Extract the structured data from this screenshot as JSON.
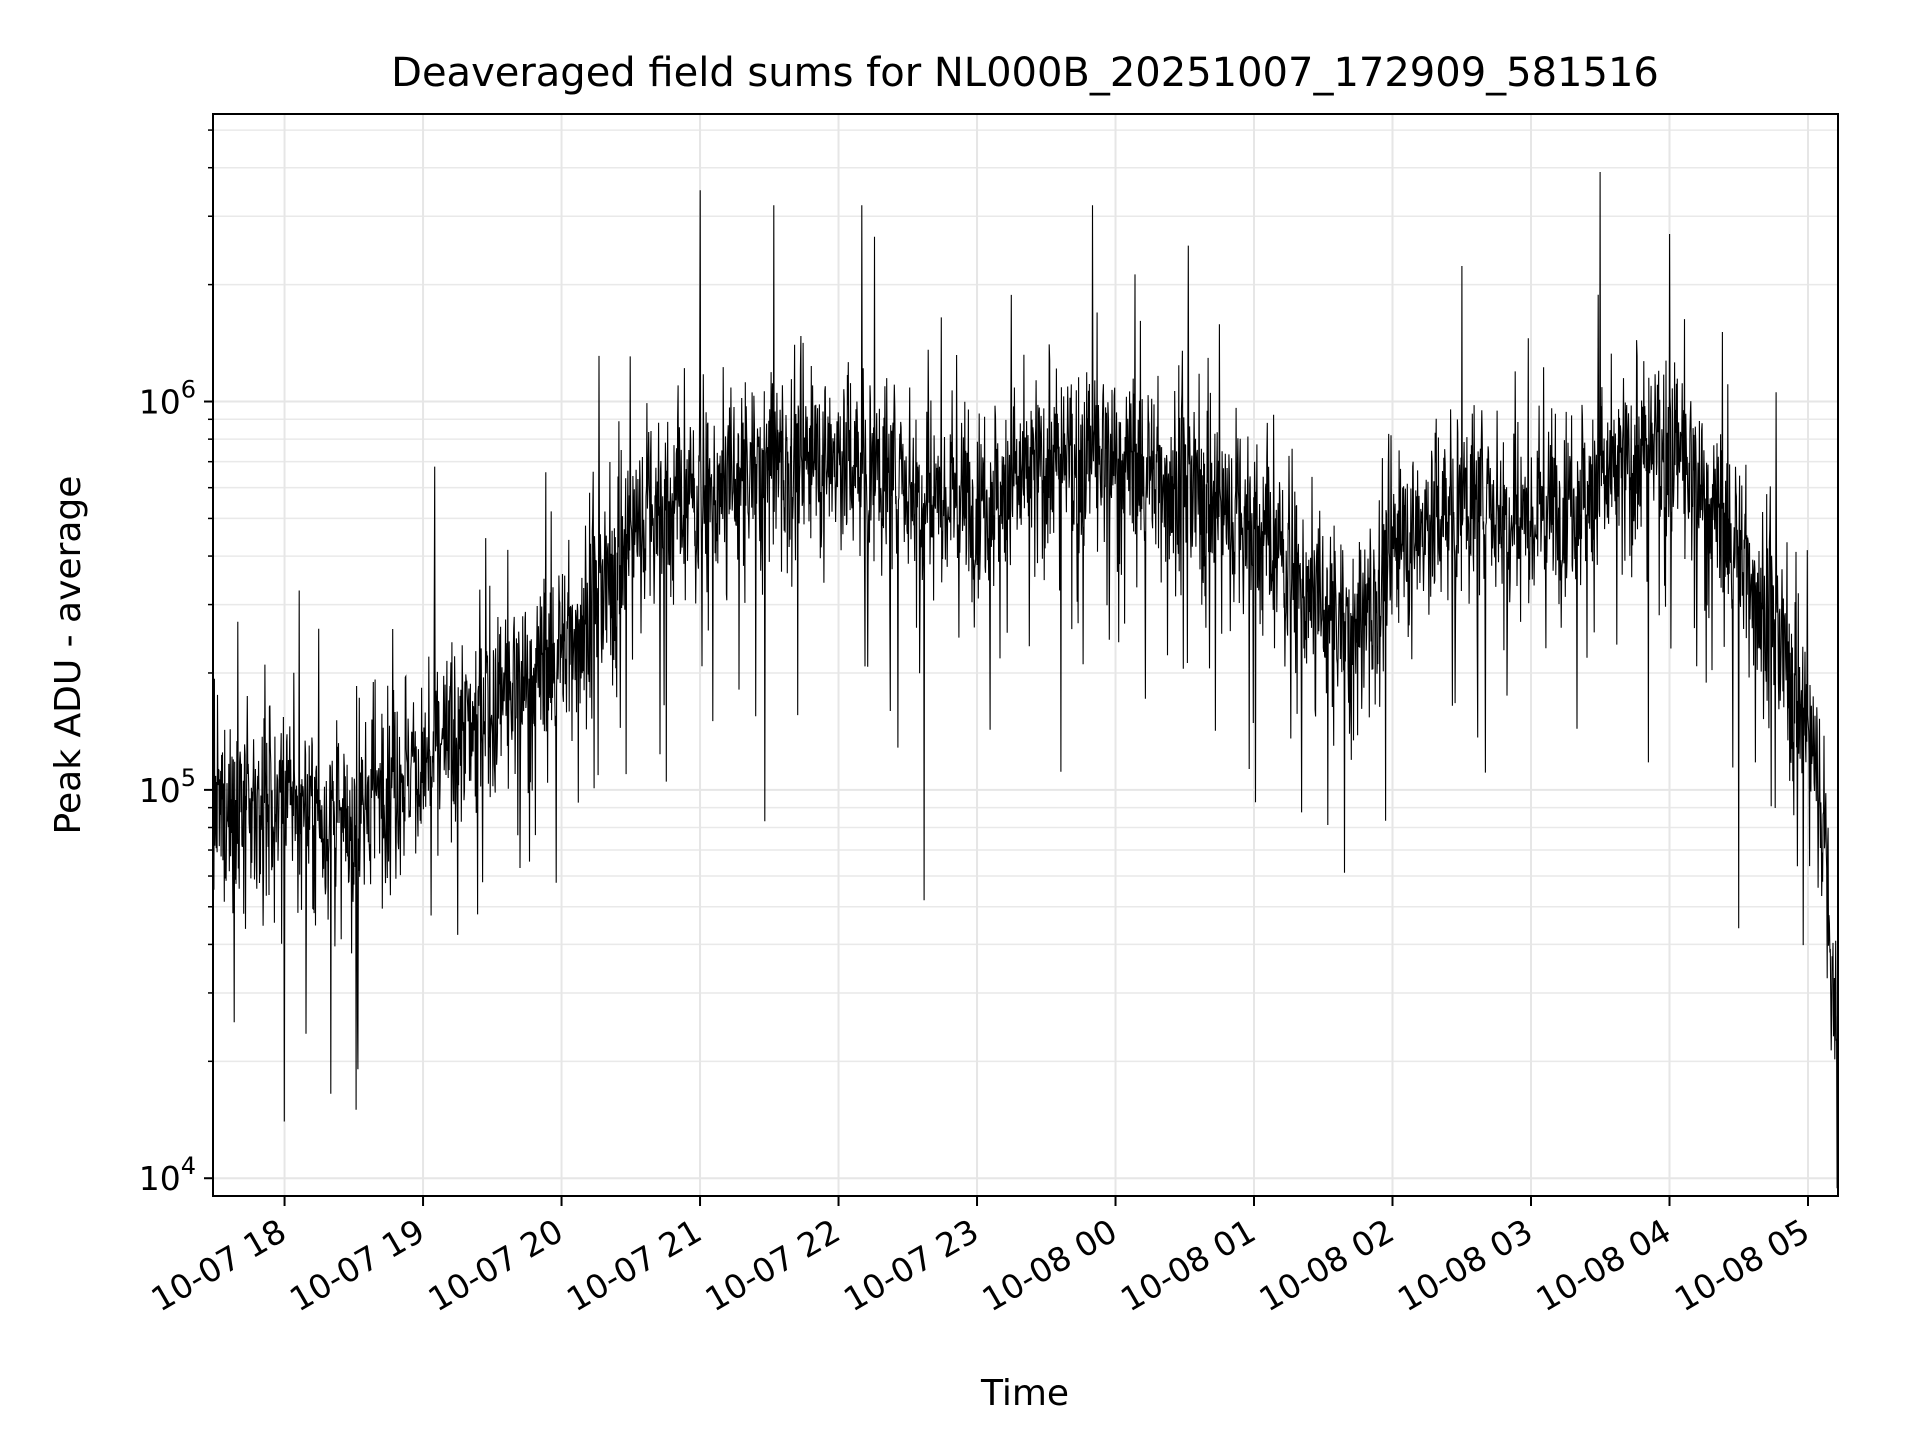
{
  "chart_data": {
    "type": "line",
    "title": "Deaveraged field sums for NL000B_20251007_172909_581516",
    "xlabel": "Time",
    "ylabel": "Peak ADU - average",
    "yscale": "log",
    "ylim": [
      9000,
      5500000
    ],
    "xlim": [
      "2025-10-07 17:29",
      "2025-10-08 05:13"
    ],
    "grid": true,
    "legend": "none",
    "line_color": "#000000",
    "x_ticks": [
      {
        "t": "2025-10-07 18:00",
        "label": "10-07 18"
      },
      {
        "t": "2025-10-07 19:00",
        "label": "10-07 19"
      },
      {
        "t": "2025-10-07 20:00",
        "label": "10-07 20"
      },
      {
        "t": "2025-10-07 21:00",
        "label": "10-07 21"
      },
      {
        "t": "2025-10-07 22:00",
        "label": "10-07 22"
      },
      {
        "t": "2025-10-07 23:00",
        "label": "10-07 23"
      },
      {
        "t": "2025-10-08 00:00",
        "label": "10-08 00"
      },
      {
        "t": "2025-10-08 01:00",
        "label": "10-08 01"
      },
      {
        "t": "2025-10-08 02:00",
        "label": "10-08 02"
      },
      {
        "t": "2025-10-08 03:00",
        "label": "10-08 03"
      },
      {
        "t": "2025-10-08 04:00",
        "label": "10-08 04"
      },
      {
        "t": "2025-10-08 05:00",
        "label": "10-08 05"
      }
    ],
    "y_ticks": [
      {
        "v": 10000,
        "base": "10",
        "exp": "4"
      },
      {
        "v": 100000,
        "base": "10",
        "exp": "5"
      },
      {
        "v": 1000000,
        "base": "10",
        "exp": "6"
      }
    ],
    "series": [
      {
        "style": "noisy",
        "envelope": [
          {
            "t": "2025-10-07 17:29",
            "y": 85000
          },
          {
            "t": "2025-10-07 18:00",
            "y": 90000
          },
          {
            "t": "2025-10-07 18:30",
            "y": 80000
          },
          {
            "t": "2025-10-07 18:45",
            "y": 110000
          },
          {
            "t": "2025-10-07 19:00",
            "y": 115000
          },
          {
            "t": "2025-10-07 19:30",
            "y": 160000
          },
          {
            "t": "2025-10-07 20:00",
            "y": 230000
          },
          {
            "t": "2025-10-07 20:20",
            "y": 330000
          },
          {
            "t": "2025-10-07 20:35",
            "y": 520000
          },
          {
            "t": "2025-10-07 21:00",
            "y": 560000
          },
          {
            "t": "2025-10-07 21:30",
            "y": 700000
          },
          {
            "t": "2025-10-07 22:00",
            "y": 720000
          },
          {
            "t": "2025-10-07 22:30",
            "y": 620000
          },
          {
            "t": "2025-10-07 23:00",
            "y": 560000
          },
          {
            "t": "2025-10-07 23:30",
            "y": 680000
          },
          {
            "t": "2025-10-08 00:00",
            "y": 720000
          },
          {
            "t": "2025-10-08 00:30",
            "y": 600000
          },
          {
            "t": "2025-10-08 01:00",
            "y": 480000
          },
          {
            "t": "2025-10-08 01:30",
            "y": 290000
          },
          {
            "t": "2025-10-08 01:45",
            "y": 250000
          },
          {
            "t": "2025-10-08 02:00",
            "y": 420000
          },
          {
            "t": "2025-10-08 02:30",
            "y": 560000
          },
          {
            "t": "2025-10-08 03:00",
            "y": 520000
          },
          {
            "t": "2025-10-08 03:30",
            "y": 620000
          },
          {
            "t": "2025-10-08 04:00",
            "y": 780000
          },
          {
            "t": "2025-10-08 04:30",
            "y": 420000
          },
          {
            "t": "2025-10-08 04:50",
            "y": 220000
          },
          {
            "t": "2025-10-08 05:05",
            "y": 110000
          },
          {
            "t": "2025-10-08 05:13",
            "y": 20000
          }
        ],
        "spikes": [
          {
            "t": "2025-10-07 18:00",
            "y": 14000
          },
          {
            "t": "2025-10-07 18:20",
            "y": 16500
          },
          {
            "t": "2025-10-07 18:31",
            "y": 15000
          },
          {
            "t": "2025-10-07 19:05",
            "y": 680000
          },
          {
            "t": "2025-10-07 21:00",
            "y": 3500000
          },
          {
            "t": "2025-10-07 21:32",
            "y": 3200000
          },
          {
            "t": "2025-10-07 21:28",
            "y": 83000
          },
          {
            "t": "2025-10-07 22:10",
            "y": 3200000
          },
          {
            "t": "2025-10-07 22:37",
            "y": 52000
          },
          {
            "t": "2025-10-07 23:50",
            "y": 3200000
          },
          {
            "t": "2025-10-08 03:30",
            "y": 3900000
          },
          {
            "t": "2025-10-08 04:00",
            "y": 2700000
          },
          {
            "t": "2025-10-08 04:30",
            "y": 44000
          },
          {
            "t": "2025-10-08 05:13",
            "y": 12500
          }
        ]
      }
    ]
  }
}
